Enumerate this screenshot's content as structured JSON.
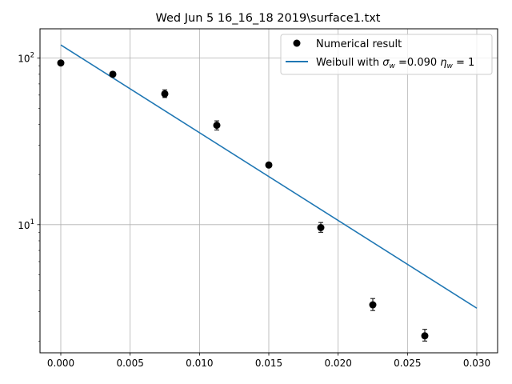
{
  "chart_data": {
    "type": "scatter",
    "title": "Wed Jun  5 16_16_18 2019\\surface1.txt",
    "xlabel": "",
    "ylabel": "",
    "xlim": [
      -0.0015,
      0.0315
    ],
    "ylim": [
      1.7,
      150
    ],
    "yscale": "log",
    "grid": true,
    "legend_position": "top-right",
    "x_ticks": [
      {
        "value": 0.0,
        "label": "0.000"
      },
      {
        "value": 0.005,
        "label": "0.005"
      },
      {
        "value": 0.01,
        "label": "0.010"
      },
      {
        "value": 0.015,
        "label": "0.015"
      },
      {
        "value": 0.02,
        "label": "0.020"
      },
      {
        "value": 0.025,
        "label": "0.025"
      },
      {
        "value": 0.03,
        "label": "0.030"
      }
    ],
    "y_ticks": [
      {
        "value": 10,
        "base": "10",
        "exp": "1"
      },
      {
        "value": 100,
        "base": "10",
        "exp": "2"
      }
    ],
    "series": [
      {
        "name": "Numerical result",
        "kind": "points-with-errorbars",
        "color": "#000000",
        "points": [
          {
            "x": 0.0,
            "y": 93.5,
            "y_low": 93.5,
            "y_high": 93.5
          },
          {
            "x": 0.00375,
            "y": 80.0,
            "y_low": 77.5,
            "y_high": 82.5
          },
          {
            "x": 0.0075,
            "y": 61.0,
            "y_low": 58.0,
            "y_high": 64.5
          },
          {
            "x": 0.01125,
            "y": 39.5,
            "y_low": 37.0,
            "y_high": 42.0
          },
          {
            "x": 0.015,
            "y": 22.8,
            "y_low": 22.3,
            "y_high": 23.4
          },
          {
            "x": 0.01875,
            "y": 9.6,
            "y_low": 9.0,
            "y_high": 10.3
          },
          {
            "x": 0.0225,
            "y": 3.3,
            "y_low": 3.05,
            "y_high": 3.6
          },
          {
            "x": 0.02625,
            "y": 2.15,
            "y_low": 2.0,
            "y_high": 2.35
          }
        ]
      },
      {
        "name": "Weibull with σ",
        "name_parts": {
          "prefix": "Weibull with ",
          "sigma": "σ",
          "sigma_sub": "w",
          "sigma_value": " =0.090 ",
          "eta": "η",
          "eta_sub": "w",
          "eta_value": " = 1"
        },
        "kind": "line",
        "color": "#1f77b4",
        "x": [
          0.0,
          0.03
        ],
        "y": [
          120,
          3.15
        ]
      }
    ]
  }
}
